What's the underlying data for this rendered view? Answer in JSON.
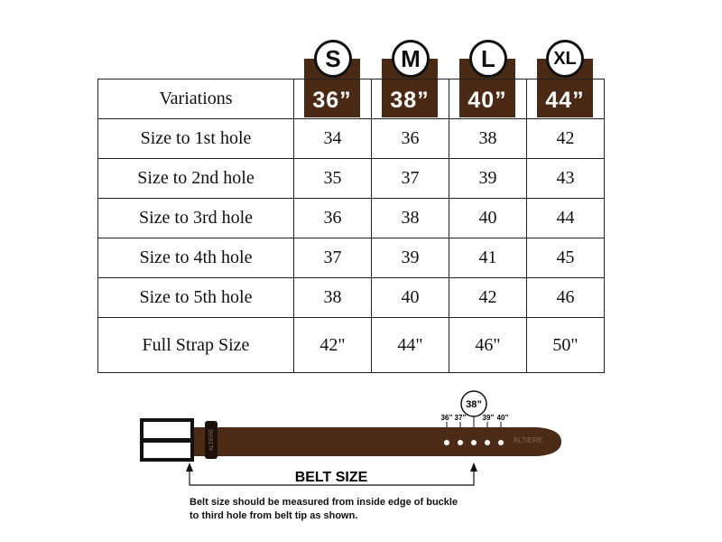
{
  "header": {
    "label": "Variations"
  },
  "sizes": [
    {
      "letter": "S",
      "waist": "36”"
    },
    {
      "letter": "M",
      "waist": "38”"
    },
    {
      "letter": "L",
      "waist": "40”"
    },
    {
      "letter": "XL",
      "waist": "44”"
    }
  ],
  "rows": [
    {
      "label": "Size to 1st hole",
      "values": [
        "34",
        "36",
        "38",
        "42"
      ]
    },
    {
      "label": "Size to 2nd hole",
      "values": [
        "35",
        "37",
        "39",
        "43"
      ]
    },
    {
      "label": "Size to 3rd hole",
      "values": [
        "36",
        "38",
        "40",
        "44"
      ]
    },
    {
      "label": "Size to 4th hole",
      "values": [
        "37",
        "39",
        "41",
        "45"
      ]
    },
    {
      "label": "Size to 5th hole",
      "values": [
        "38",
        "40",
        "42",
        "46"
      ]
    },
    {
      "label": "Full Strap Size",
      "values": [
        "42\"",
        "44\"",
        "46\"",
        "50\""
      ]
    }
  ],
  "diagram": {
    "highlight": "38”",
    "hole_labels": [
      "36”",
      "37”",
      "39”",
      "40”"
    ],
    "brand": "ALTIERE",
    "belt_size_label": "BELT SIZE",
    "note_line1": "Belt size should be measured from inside edge of buckle",
    "note_line2": "to third hole from belt tip as shown."
  },
  "colors": {
    "brown": "#4a2a14",
    "strap": "#4b2b16"
  }
}
